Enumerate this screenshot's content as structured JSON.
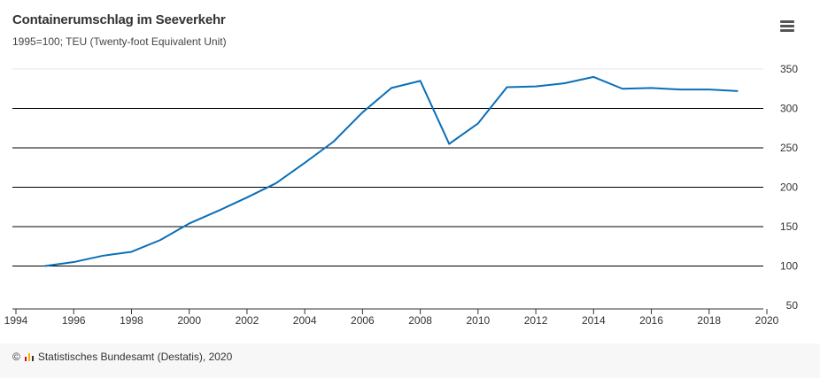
{
  "header": {
    "title": "Containerumschlag im Seeverkehr",
    "subtitle": "1995=100; TEU (Twenty-foot Equivalent Unit)"
  },
  "menu": {
    "icon": "hamburger-menu-icon"
  },
  "footer": {
    "copyright_symbol": "©",
    "source": "Statistisches Bundesamt (Destatis), 2020"
  },
  "colors": {
    "line": "#0a6fb8",
    "gridline": "#000000",
    "logo": [
      "#e2001a",
      "#f7b500",
      "#333333"
    ]
  },
  "chart_data": {
    "type": "line",
    "title": "Containerumschlag im Seeverkehr",
    "subtitle": "1995=100; TEU (Twenty-foot Equivalent Unit)",
    "xlabel": "",
    "ylabel": "",
    "xlim": [
      1994,
      2020
    ],
    "ylim": [
      50,
      350
    ],
    "x_ticks": [
      1994,
      1996,
      1998,
      2000,
      2002,
      2004,
      2006,
      2008,
      2010,
      2012,
      2014,
      2016,
      2018,
      2020
    ],
    "y_ticks": [
      50,
      100,
      150,
      200,
      250,
      300,
      350
    ],
    "y_axis_position": "right",
    "grid": true,
    "legend": "none",
    "x": [
      1995,
      1996,
      1997,
      1998,
      1999,
      2000,
      2001,
      2002,
      2003,
      2004,
      2005,
      2006,
      2007,
      2008,
      2009,
      2010,
      2011,
      2012,
      2013,
      2014,
      2015,
      2016,
      2017,
      2018,
      2019
    ],
    "series": [
      {
        "values": [
          100,
          105,
          113,
          118,
          133,
          154,
          170,
          187,
          205,
          231,
          258,
          295,
          326,
          335,
          255,
          281,
          327,
          328,
          332,
          340,
          325,
          326,
          324,
          324,
          322
        ]
      }
    ]
  }
}
